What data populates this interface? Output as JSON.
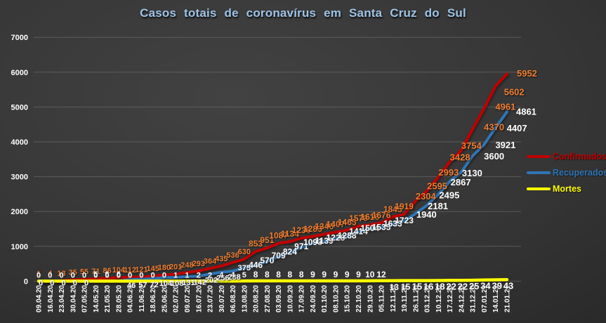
{
  "title": "Casos totais de coronavírus em Santa Cruz do Sul",
  "title_color": "#9DC3E6",
  "chart_data": {
    "type": "line",
    "title": "Casos totais de coronavírus em Santa Cruz do Sul",
    "xlabel": "",
    "ylabel": "",
    "ylim": [
      0,
      7000
    ],
    "y_ticks": [
      0,
      1000,
      2000,
      3000,
      4000,
      5000,
      6000,
      7000
    ],
    "grid": true,
    "legend_position": "right",
    "x_tick_labels": [
      "09.04.20",
      "16.04.20",
      "23.04.20",
      "30.04.20",
      "07.05.20",
      "14.05.20",
      "21.05.20",
      "28.05.20",
      "04.06.20",
      "11.06.20",
      "18.06.20",
      "25.06.20",
      "02.07.20",
      "09.07.20",
      "16.07.20",
      "23.07.20",
      "30.07.20",
      "06.08.20",
      "13.08.20",
      "20.08.20",
      "27.08.20",
      "03.09.20",
      "10.09.20",
      "17.09.20",
      "24.09.20",
      "01.10.20",
      "08.10.20",
      "15.10.20",
      "22.10.20",
      "29.10.20",
      "05.11.20",
      "12.11.20",
      "19.11.20",
      "26.11.20",
      "03.12.20",
      "10.12.20",
      "17.12.20",
      "24.12.20",
      "31.12.20",
      "07.01.21",
      "14.01.21",
      "21.01.21"
    ],
    "series": [
      {
        "name": "Confirmados",
        "color": "#C00000",
        "label_color": "#ED7D31",
        "values": [
          1,
          4,
          13,
          35,
          55,
          71,
          86,
          104,
          112,
          121,
          145,
          180,
          201,
          248,
          293,
          364,
          435,
          536,
          630,
          853,
          951,
          1087,
          1134,
          1236,
          1283,
          1346,
          1407,
          1465,
          1579,
          1616,
          1676,
          1845,
          1919,
          2304,
          2595,
          2993,
          3428,
          3754,
          4370,
          4961,
          5602,
          5952
        ]
      },
      {
        "name": "Recuperados",
        "color": "#2E75B6",
        "label_color": "#FFFFFF",
        "values": [
          0,
          0,
          0,
          0,
          0,
          5,
          6,
          6,
          46,
          57,
          72,
          104,
          108,
          131,
          142,
          202,
          256,
          288,
          375,
          446,
          570,
          709,
          824,
          971,
          1093,
          1139,
          1228,
          1288,
          1414,
          1504,
          1535,
          1633,
          1723,
          1940,
          2181,
          2495,
          2867,
          3130,
          3600,
          3921,
          4407,
          4861
        ]
      },
      {
        "name": "Mortes",
        "color": "#FFFF00",
        "label_color": "#FFFFFF",
        "values": [
          0,
          0,
          0,
          0,
          0,
          0,
          0,
          0,
          0,
          0,
          0,
          0,
          1,
          1,
          2,
          2,
          4,
          4,
          5,
          8,
          8,
          8,
          8,
          8,
          9,
          9,
          9,
          9,
          9,
          10,
          12,
          13,
          15,
          15,
          16,
          18,
          22,
          22,
          25,
          34,
          39,
          43
        ]
      }
    ]
  }
}
